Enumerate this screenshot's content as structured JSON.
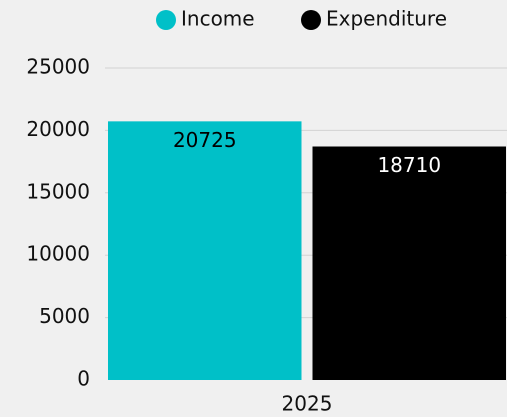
{
  "chart_data": {
    "type": "bar",
    "categories": [
      "2025"
    ],
    "series": [
      {
        "name": "Income",
        "color": "#00c0c8",
        "label_color": "#000000",
        "values": [
          20725
        ]
      },
      {
        "name": "Expenditure",
        "color": "#000000",
        "label_color": "#ffffff",
        "values": [
          18710
        ]
      }
    ],
    "ylim": [
      0,
      25000
    ],
    "yticks": [
      0,
      5000,
      10000,
      15000,
      20000,
      25000
    ],
    "grid": true,
    "legend": "top"
  }
}
